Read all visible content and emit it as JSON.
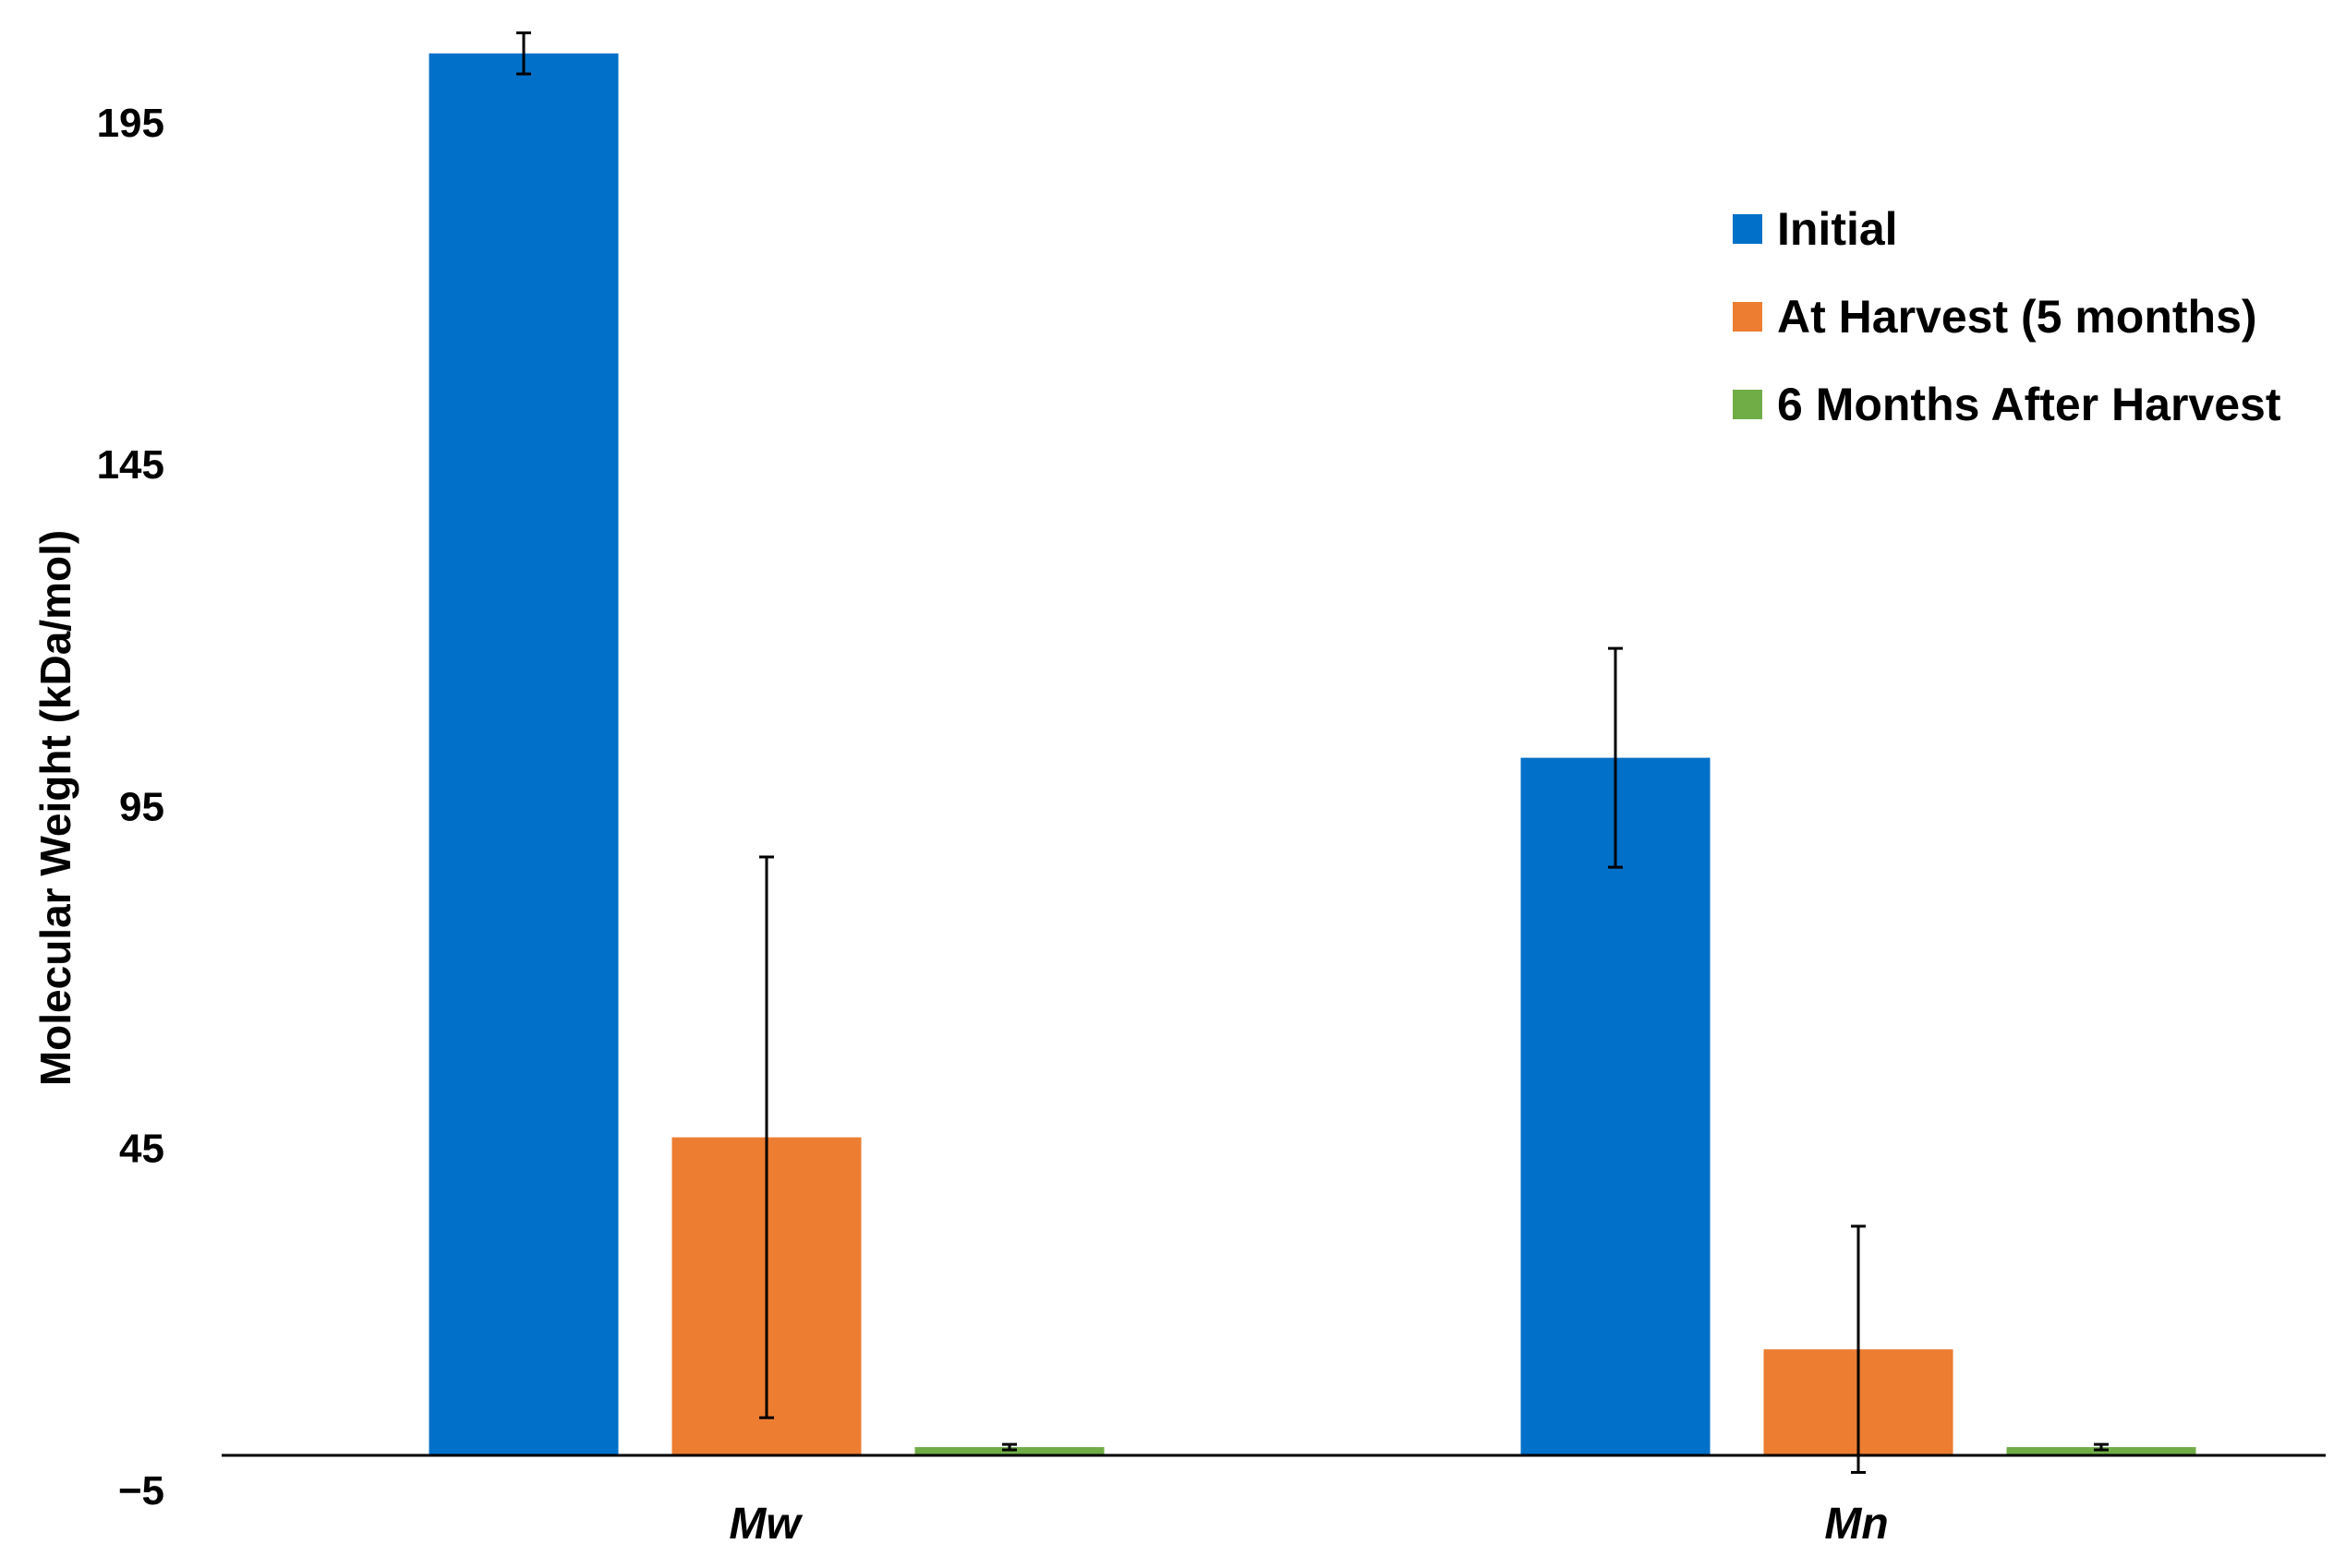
{
  "chart_data": {
    "type": "bar",
    "title": "",
    "xlabel": "",
    "ylabel": "Molecular Weight (kDa/mol)",
    "ylim": [
      -5,
      212
    ],
    "y_ticks": [
      -5,
      45,
      95,
      145,
      195
    ],
    "y_tick_labels": [
      "−5",
      "45",
      "95",
      "145",
      "195"
    ],
    "categories": [
      "Mw",
      "Mn"
    ],
    "grid": false,
    "legend_position": "top-right",
    "series": [
      {
        "name": "Initial",
        "color": "#0070C8",
        "values": [
          205,
          102
        ],
        "errors": [
          3,
          16
        ]
      },
      {
        "name": "At Harvest (5 months)",
        "color": "#ED7D31",
        "values": [
          46.5,
          15.5
        ],
        "errors": [
          41,
          18
        ]
      },
      {
        "name": "6 Months After Harvest",
        "color": "#70AD47",
        "values": [
          1.2,
          1.2
        ],
        "errors": [
          0.4,
          0.4
        ]
      }
    ]
  }
}
